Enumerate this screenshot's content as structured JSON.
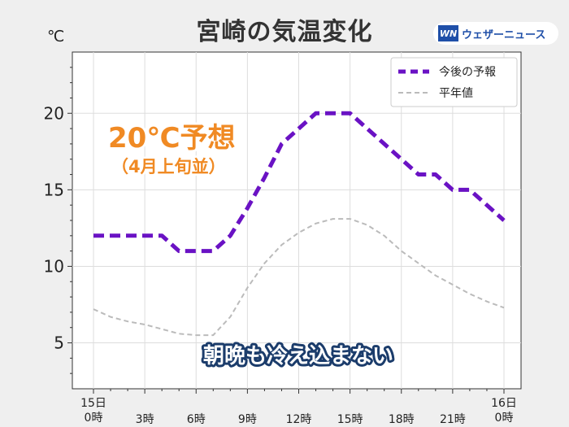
{
  "header": {
    "title": "宮崎の気温変化",
    "unit": "℃",
    "logo_mark": "WN",
    "logo_text": "ウェザーニュース"
  },
  "annotations": {
    "forecast_peak": "20℃予想",
    "forecast_peak_note": "（4月上旬並）",
    "comment": "朝晩も冷え込まない"
  },
  "colors": {
    "forecast": "#6a12c4",
    "normal": "#bbbbbb",
    "comment_stroke": "#1b3c6b",
    "annotation": "#f08a24"
  },
  "chart_data": {
    "type": "line",
    "x": [
      0,
      1,
      2,
      3,
      4,
      5,
      6,
      7,
      8,
      9,
      10,
      11,
      12,
      13,
      14,
      15,
      16,
      17,
      18,
      19,
      20,
      21,
      22,
      23,
      24
    ],
    "xlim": [
      0,
      24
    ],
    "ylim": [
      2,
      24
    ],
    "yticks": [
      5,
      10,
      15,
      20
    ],
    "xticks": [
      {
        "x": 0,
        "label": "15日\n0時"
      },
      {
        "x": 3,
        "label": "3時"
      },
      {
        "x": 6,
        "label": "6時"
      },
      {
        "x": 9,
        "label": "9時"
      },
      {
        "x": 12,
        "label": "12時"
      },
      {
        "x": 15,
        "label": "15時"
      },
      {
        "x": 18,
        "label": "18時"
      },
      {
        "x": 21,
        "label": "21時"
      },
      {
        "x": 24,
        "label": "16日\n0時"
      }
    ],
    "grid": true,
    "legend_position": "top-right",
    "series": [
      {
        "name": "今後の予報",
        "values": [
          12,
          12,
          12,
          12,
          12,
          11,
          11,
          11,
          12,
          13.8,
          15.8,
          18,
          19,
          20,
          20,
          20,
          19,
          18,
          17,
          16,
          16,
          15,
          15,
          14,
          13
        ]
      },
      {
        "name": "平年値",
        "values": [
          7.2,
          6.7,
          6.4,
          6.2,
          5.9,
          5.6,
          5.5,
          5.5,
          6.7,
          8.6,
          10.2,
          11.4,
          12.2,
          12.8,
          13.1,
          13.1,
          12.7,
          12.0,
          11.0,
          10.2,
          9.4,
          8.8,
          8.2,
          7.7,
          7.3
        ]
      }
    ]
  }
}
